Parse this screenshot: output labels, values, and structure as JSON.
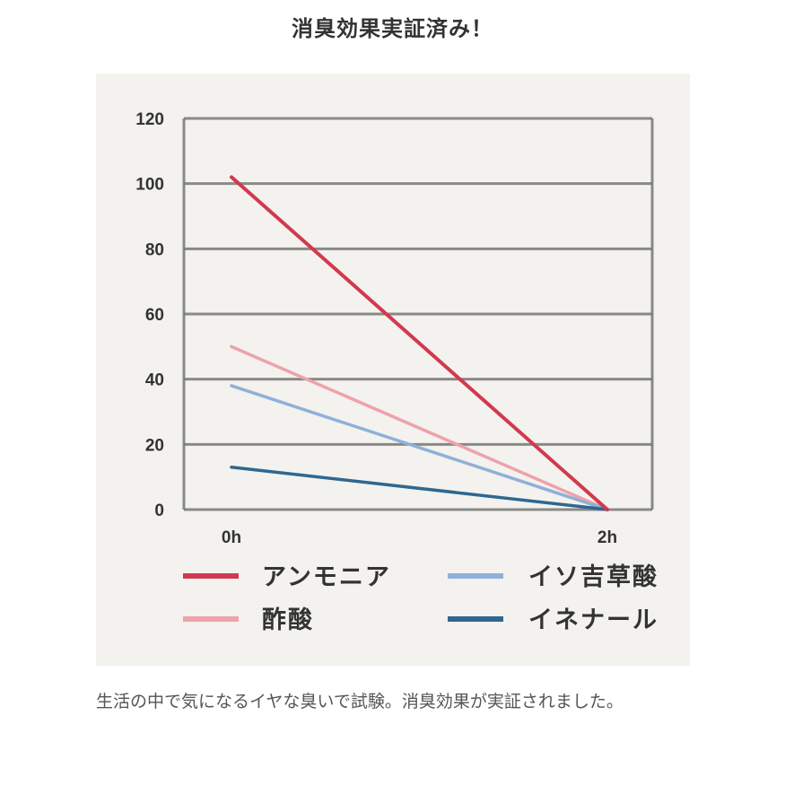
{
  "title": "消臭効果実証済み！",
  "caption": "生活の中で気になるイヤな臭いで試験。消臭効果が実証されました。",
  "colors": {
    "panel_bg": "#f3f2ee",
    "grid": "#777777",
    "ammonia": "#d2394f",
    "acetic_acid": "#eea2aa",
    "isovaleric_acid": "#8fb0d8",
    "nonenal": "#2f6790"
  },
  "chart_data": {
    "type": "line",
    "title": "消臭効果実証済み！",
    "xlabel": "",
    "ylabel": "",
    "x": [
      "0h",
      "2h"
    ],
    "yticks": [
      "0",
      "20",
      "40",
      "60",
      "80",
      "100",
      "120"
    ],
    "ylim": [
      0,
      120
    ],
    "grid": true,
    "legend_position": "bottom",
    "series": [
      {
        "name": "アンモニア",
        "values": [
          102,
          0
        ],
        "color": "#d2394f"
      },
      {
        "name": "イソ吉草酸",
        "values": [
          38,
          0
        ],
        "color": "#8fb0d8"
      },
      {
        "name": "酢酸",
        "values": [
          50,
          0
        ],
        "color": "#eea2aa"
      },
      {
        "name": "イネナール",
        "values": [
          13,
          0
        ],
        "color": "#2f6790"
      }
    ]
  },
  "legend": [
    {
      "label": "アンモニア",
      "color": "#d2394f"
    },
    {
      "label": "イソ吉草酸",
      "color": "#8fb0d8"
    },
    {
      "label": "酢酸",
      "color": "#eea2aa"
    },
    {
      "label": "イネナール",
      "color": "#2f6790"
    }
  ]
}
